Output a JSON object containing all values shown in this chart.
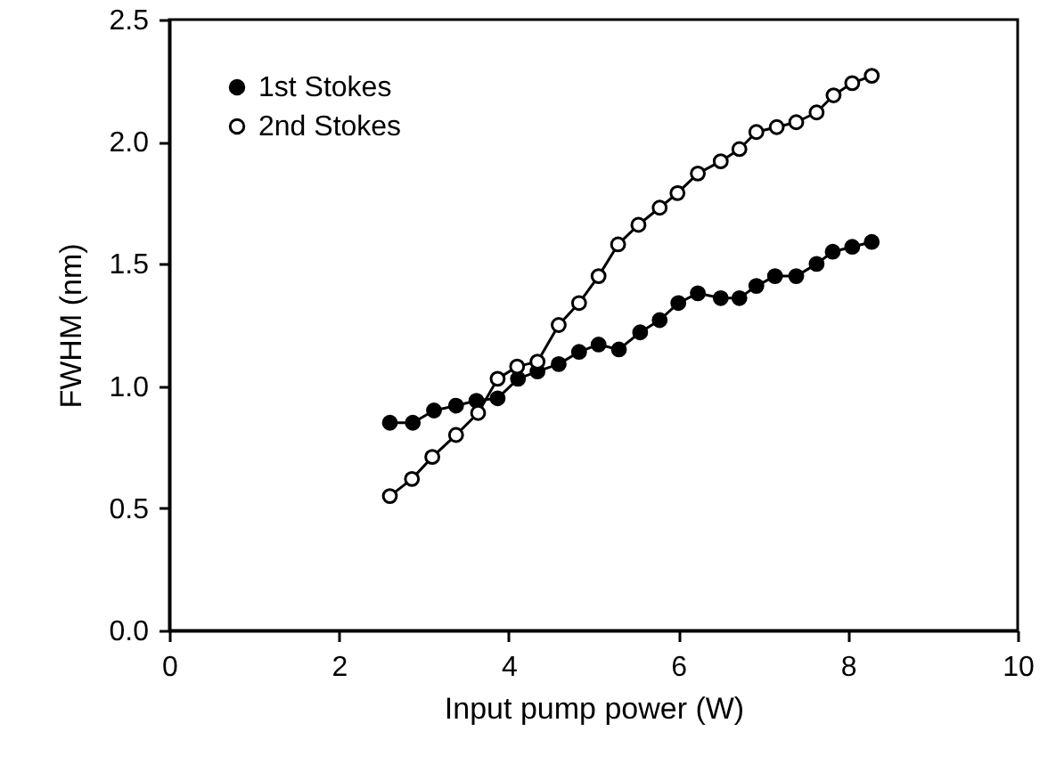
{
  "chart_data": {
    "type": "line",
    "xlabel": "Input pump power (W)",
    "ylabel": "FWHM (nm)",
    "xlim": [
      0,
      10
    ],
    "xticks": [
      0,
      2,
      4,
      6,
      8,
      10
    ],
    "ylim": [
      0,
      2.5
    ],
    "yticks": [
      {
        "value": 0,
        "label": "0.0"
      },
      {
        "value": 0.5,
        "label": "0.5"
      },
      {
        "value": 1,
        "label": "1.0"
      },
      {
        "value": 1.5,
        "label": "1.5"
      },
      {
        "value": 2,
        "label": "2.0"
      },
      {
        "value": 2.5,
        "label": "2.5"
      }
    ],
    "grid": false,
    "legend": "top left",
    "marker": "circle",
    "line_style": "solid",
    "series": [
      {
        "name": "1st Stokes",
        "color": "#000000",
        "x": [
          2.6,
          2.87,
          3.12,
          3.38,
          3.62,
          3.87,
          4.11,
          4.34,
          4.59,
          4.83,
          5.06,
          5.3,
          5.55,
          5.78,
          6.0,
          6.23,
          6.5,
          6.72,
          6.92,
          7.14,
          7.39,
          7.63,
          7.82,
          8.05,
          8.28
        ],
        "values": [
          0.85,
          0.85,
          0.9,
          0.92,
          0.94,
          0.95,
          1.03,
          1.06,
          1.09,
          1.14,
          1.17,
          1.15,
          1.22,
          1.27,
          1.34,
          1.38,
          1.36,
          1.36,
          1.41,
          1.45,
          1.45,
          1.5,
          1.55,
          1.57,
          1.59
        ]
      },
      {
        "name": "2nd Stokes",
        "color": "#000000",
        "x": [
          2.6,
          2.86,
          3.1,
          3.38,
          3.64,
          3.87,
          4.1,
          4.34,
          4.59,
          4.83,
          5.06,
          5.29,
          5.53,
          5.78,
          5.99,
          6.23,
          6.5,
          6.72,
          6.92,
          7.16,
          7.39,
          7.63,
          7.83,
          8.05,
          8.28
        ],
        "values": [
          0.55,
          0.62,
          0.71,
          0.8,
          0.89,
          1.03,
          1.08,
          1.1,
          1.25,
          1.34,
          1.45,
          1.58,
          1.66,
          1.73,
          1.79,
          1.87,
          1.92,
          1.97,
          2.04,
          2.06,
          2.08,
          2.12,
          2.19,
          2.24,
          2.27
        ]
      }
    ]
  }
}
